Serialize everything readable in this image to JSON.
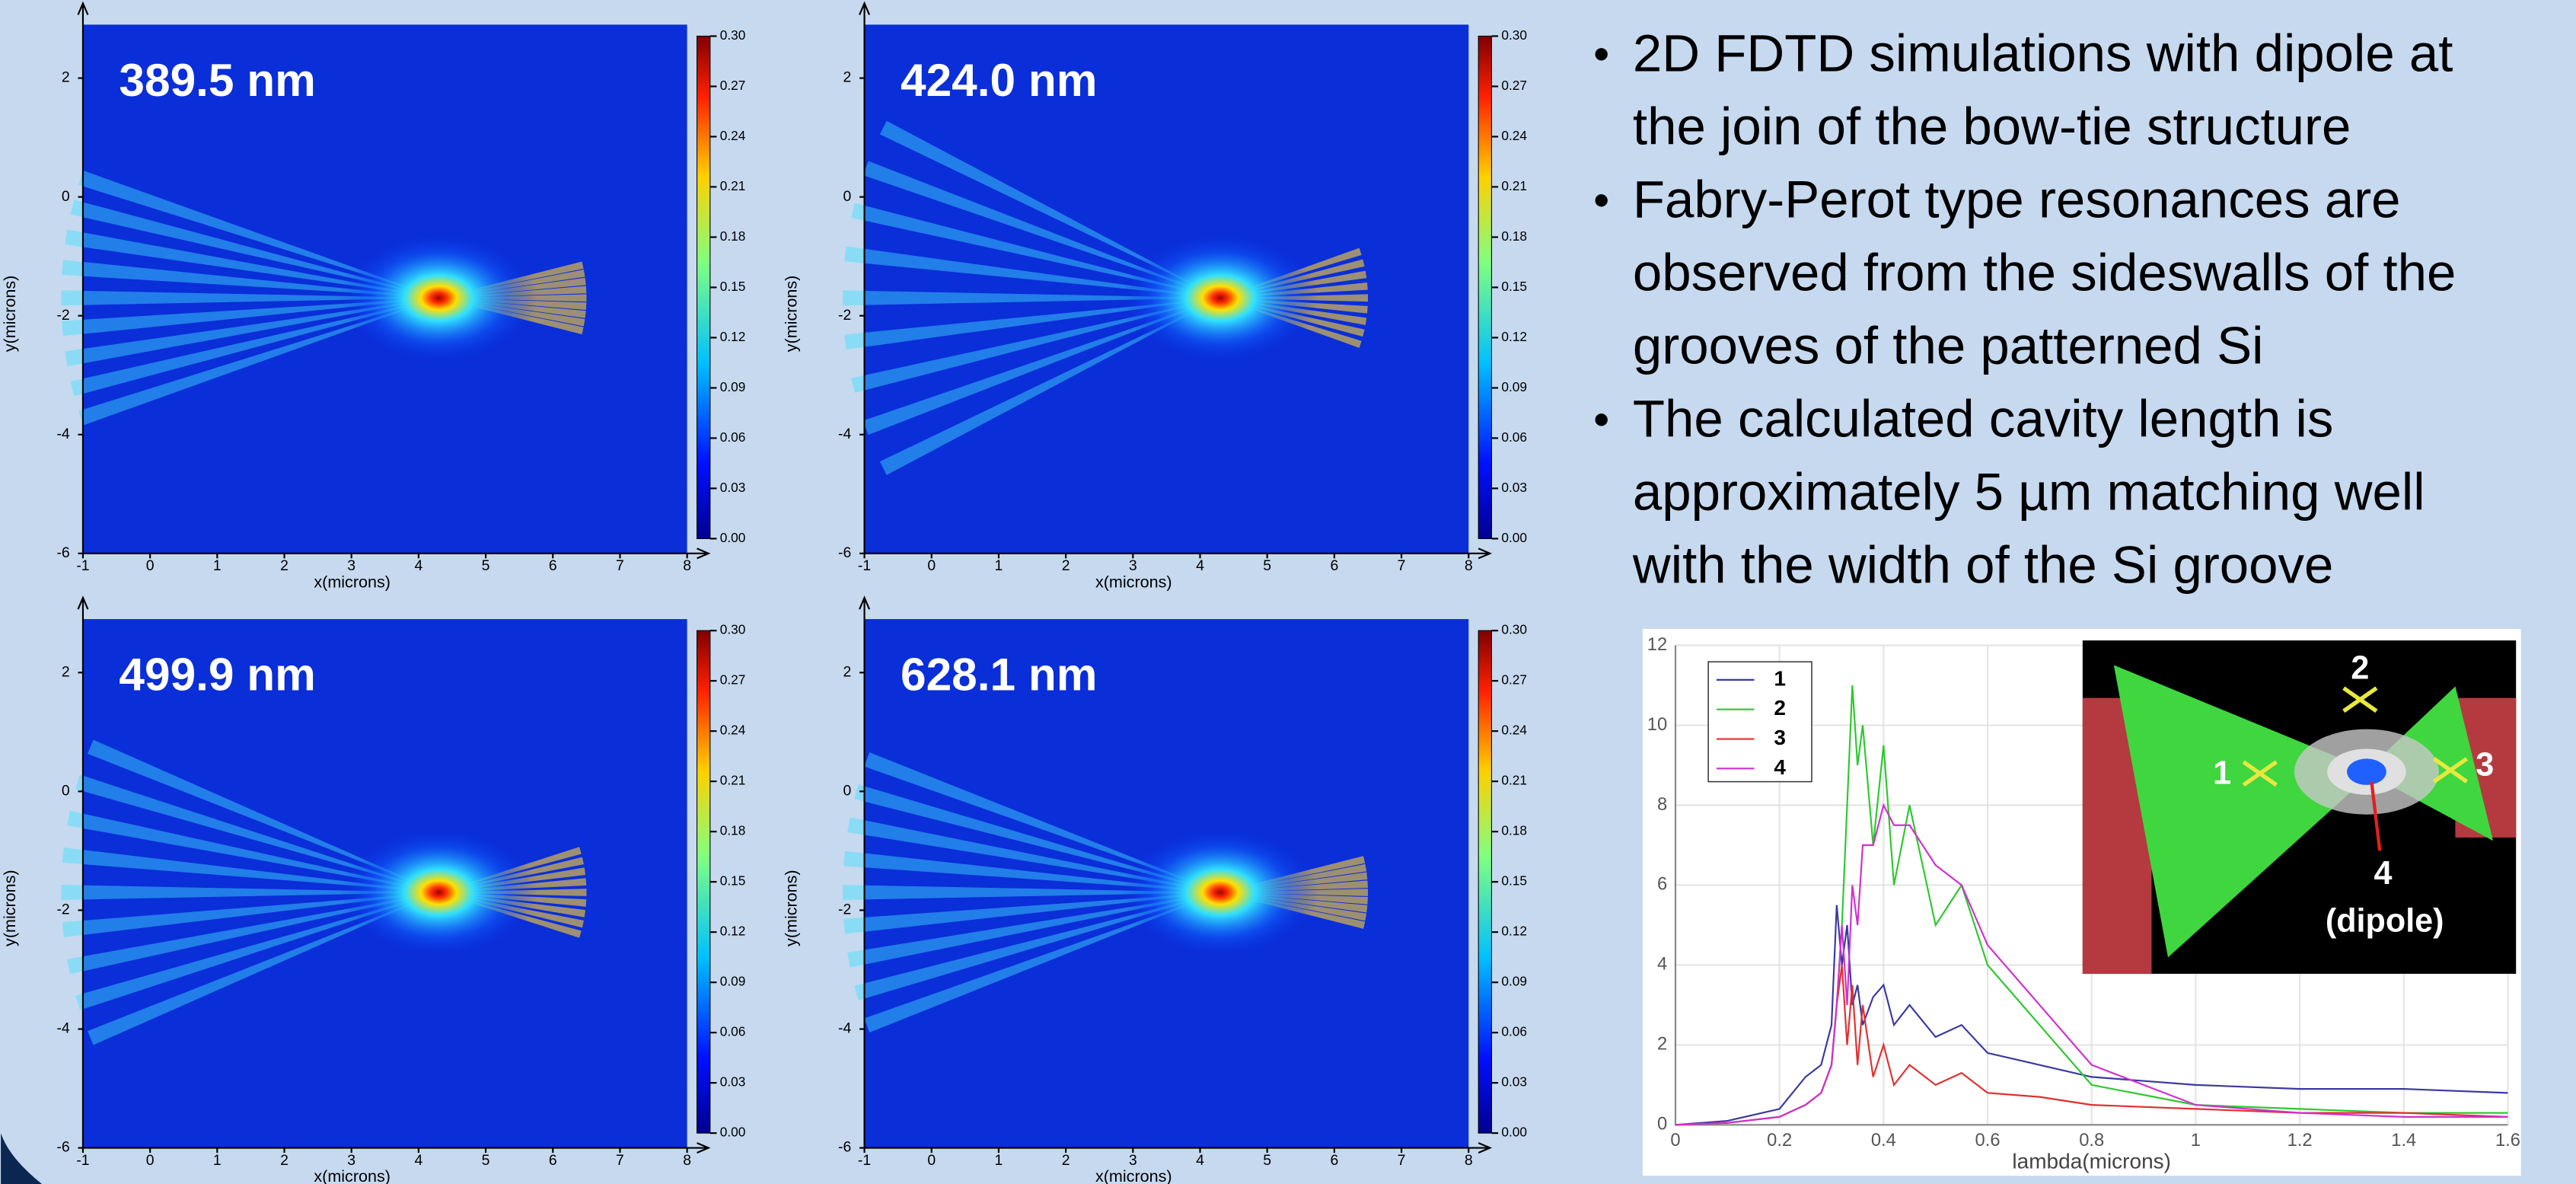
{
  "field_maps": {
    "x_label": "x(microns)",
    "y_label": "y(microns)",
    "xlim": [
      -1,
      8
    ],
    "ylim": [
      -6,
      2.9
    ],
    "xticks": [
      -1,
      0,
      1,
      2,
      3,
      4,
      5,
      6,
      7,
      8
    ],
    "yticks": [
      2,
      0,
      -2,
      -4,
      -6
    ],
    "colorbar_lim": [
      0,
      0.3
    ],
    "colorbar_ticks": [
      {
        "value": 0.3,
        "label": "0.30"
      },
      {
        "value": 0.27,
        "label": "0.27"
      },
      {
        "value": 0.24,
        "label": "0.24"
      },
      {
        "value": 0.21,
        "label": "0.21"
      },
      {
        "value": 0.18,
        "label": "0.18"
      },
      {
        "value": 0.15,
        "label": "0.15"
      },
      {
        "value": 0.12,
        "label": "0.12"
      },
      {
        "value": 0.09,
        "label": "0.09"
      },
      {
        "value": 0.06,
        "label": "0.06"
      },
      {
        "value": 0.03,
        "label": "0.03"
      },
      {
        "value": 0,
        "label": "0.00"
      }
    ],
    "panels": [
      {
        "label": "389.5 nm"
      },
      {
        "label": "424.0 nm"
      },
      {
        "label": "499.9 nm"
      },
      {
        "label": "628.1 nm"
      }
    ]
  },
  "bullets": [
    [
      "2D FDTD simulations with dipole at",
      "the join of the bow-tie structure"
    ],
    [
      "Fabry-Perot type resonances are",
      "observed from the sideswalls of the",
      "grooves of the patterned Si"
    ],
    [
      "The calculated cavity length is",
      "approximately 5 µm matching well",
      "with the width of the Si groove"
    ]
  ],
  "chart_data": {
    "type": "line",
    "x_label": "lambda(microns)",
    "x": [
      0,
      0.1,
      0.2,
      0.25,
      0.28,
      0.3,
      0.31,
      0.32,
      0.33,
      0.34,
      0.35,
      0.36,
      0.38,
      0.4,
      0.42,
      0.45,
      0.5,
      0.55,
      0.6,
      0.7,
      0.8,
      1.0,
      1.2,
      1.4,
      1.6
    ],
    "xlim": [
      0,
      1.6
    ],
    "xticks": [
      0,
      0.2,
      0.4,
      0.6,
      0.8,
      1,
      1.2,
      1.4,
      1.6
    ],
    "ylim": [
      0,
      12
    ],
    "yticks": [
      0,
      2,
      4,
      6,
      8,
      10,
      12
    ],
    "grid": true,
    "series": [
      {
        "name": "1",
        "color": "#3a3aa0",
        "values": [
          0,
          0.1,
          0.4,
          1.2,
          1.5,
          2.5,
          5.5,
          4,
          5,
          3,
          3.5,
          2.5,
          3.2,
          3.5,
          2.5,
          3,
          2.2,
          2.5,
          1.8,
          1.5,
          1.2,
          1.0,
          0.9,
          0.9,
          0.8
        ]
      },
      {
        "name": "2",
        "color": "#2ec82e",
        "values": [
          0,
          0.05,
          0.2,
          0.5,
          0.8,
          1.5,
          3,
          5,
          8,
          11,
          9,
          10,
          7,
          9.5,
          6,
          8,
          5,
          6,
          4,
          2.5,
          1,
          0.5,
          0.4,
          0.3,
          0.3
        ]
      },
      {
        "name": "3",
        "color": "#e03030",
        "values": [
          0,
          0.05,
          0.2,
          0.5,
          0.8,
          1.5,
          3,
          4,
          2,
          3.5,
          1.5,
          3,
          1.2,
          2,
          1,
          1.5,
          1,
          1.3,
          0.8,
          0.7,
          0.5,
          0.4,
          0.3,
          0.3,
          0.2
        ]
      },
      {
        "name": "4",
        "color": "#d030d0",
        "values": [
          0,
          0.05,
          0.2,
          0.5,
          0.8,
          1.5,
          3,
          5,
          3,
          6,
          5,
          7,
          7,
          8,
          7.5,
          7.5,
          6.5,
          6,
          4.5,
          3,
          1.5,
          0.5,
          0.3,
          0.2,
          0.2
        ]
      }
    ]
  },
  "inset": {
    "labels": [
      "1",
      "2",
      "3",
      "4",
      "(dipole)"
    ]
  }
}
